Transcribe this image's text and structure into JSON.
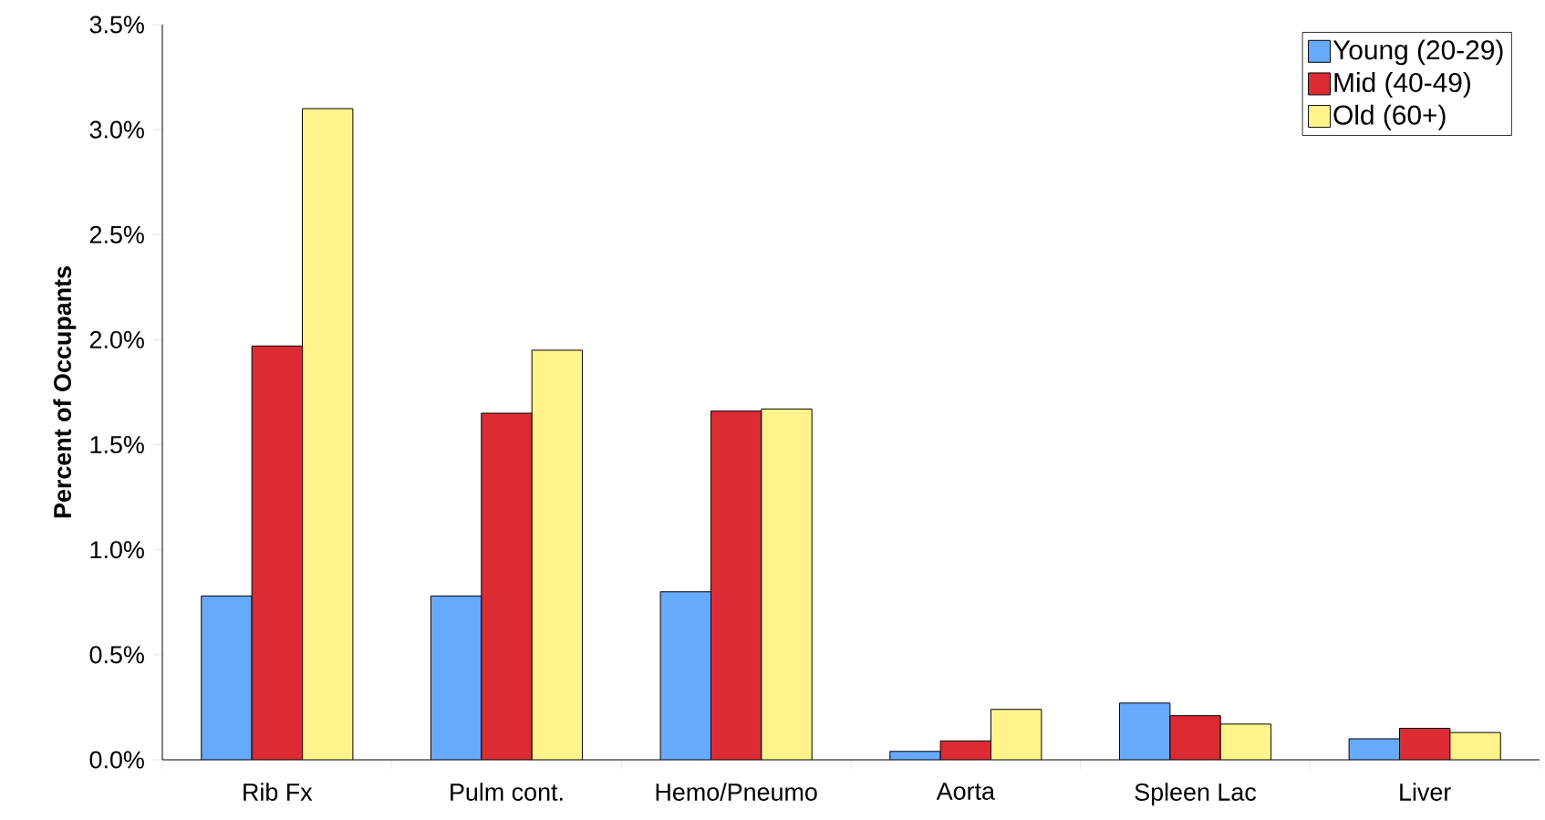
{
  "chart_data": {
    "type": "bar",
    "ylabel": "Percent of Occupants",
    "categories": [
      "Rib Fx",
      "Pulm cont.",
      "Hemo/Pneumo",
      "Aorta",
      "Spleen Lac",
      "Liver"
    ],
    "series": [
      {
        "name": "Young (20-29)",
        "color": "#66aaff",
        "values": [
          0.78,
          0.78,
          0.8,
          0.04,
          0.27,
          0.1
        ]
      },
      {
        "name": "Mid (40-49)",
        "color": "#dd2b33",
        "values": [
          1.97,
          1.65,
          1.66,
          0.09,
          0.21,
          0.15
        ]
      },
      {
        "name": "Old (60+)",
        "color": "#fff48c",
        "values": [
          3.1,
          1.95,
          1.67,
          0.24,
          0.17,
          0.13
        ]
      }
    ],
    "ylim": [
      0,
      3.5
    ],
    "yticks": [
      {
        "value": 0,
        "label": "0.0%"
      },
      {
        "value": 0.5,
        "label": "0.5%"
      },
      {
        "value": 1.0,
        "label": "1.0%"
      },
      {
        "value": 1.5,
        "label": "1.5%"
      },
      {
        "value": 2.0,
        "label": "2.0%"
      },
      {
        "value": 2.5,
        "label": "2.5%"
      },
      {
        "value": 3.0,
        "label": "3.0%"
      },
      {
        "value": 3.5,
        "label": "3.5%"
      }
    ],
    "legend": "top right",
    "grid": false
  }
}
